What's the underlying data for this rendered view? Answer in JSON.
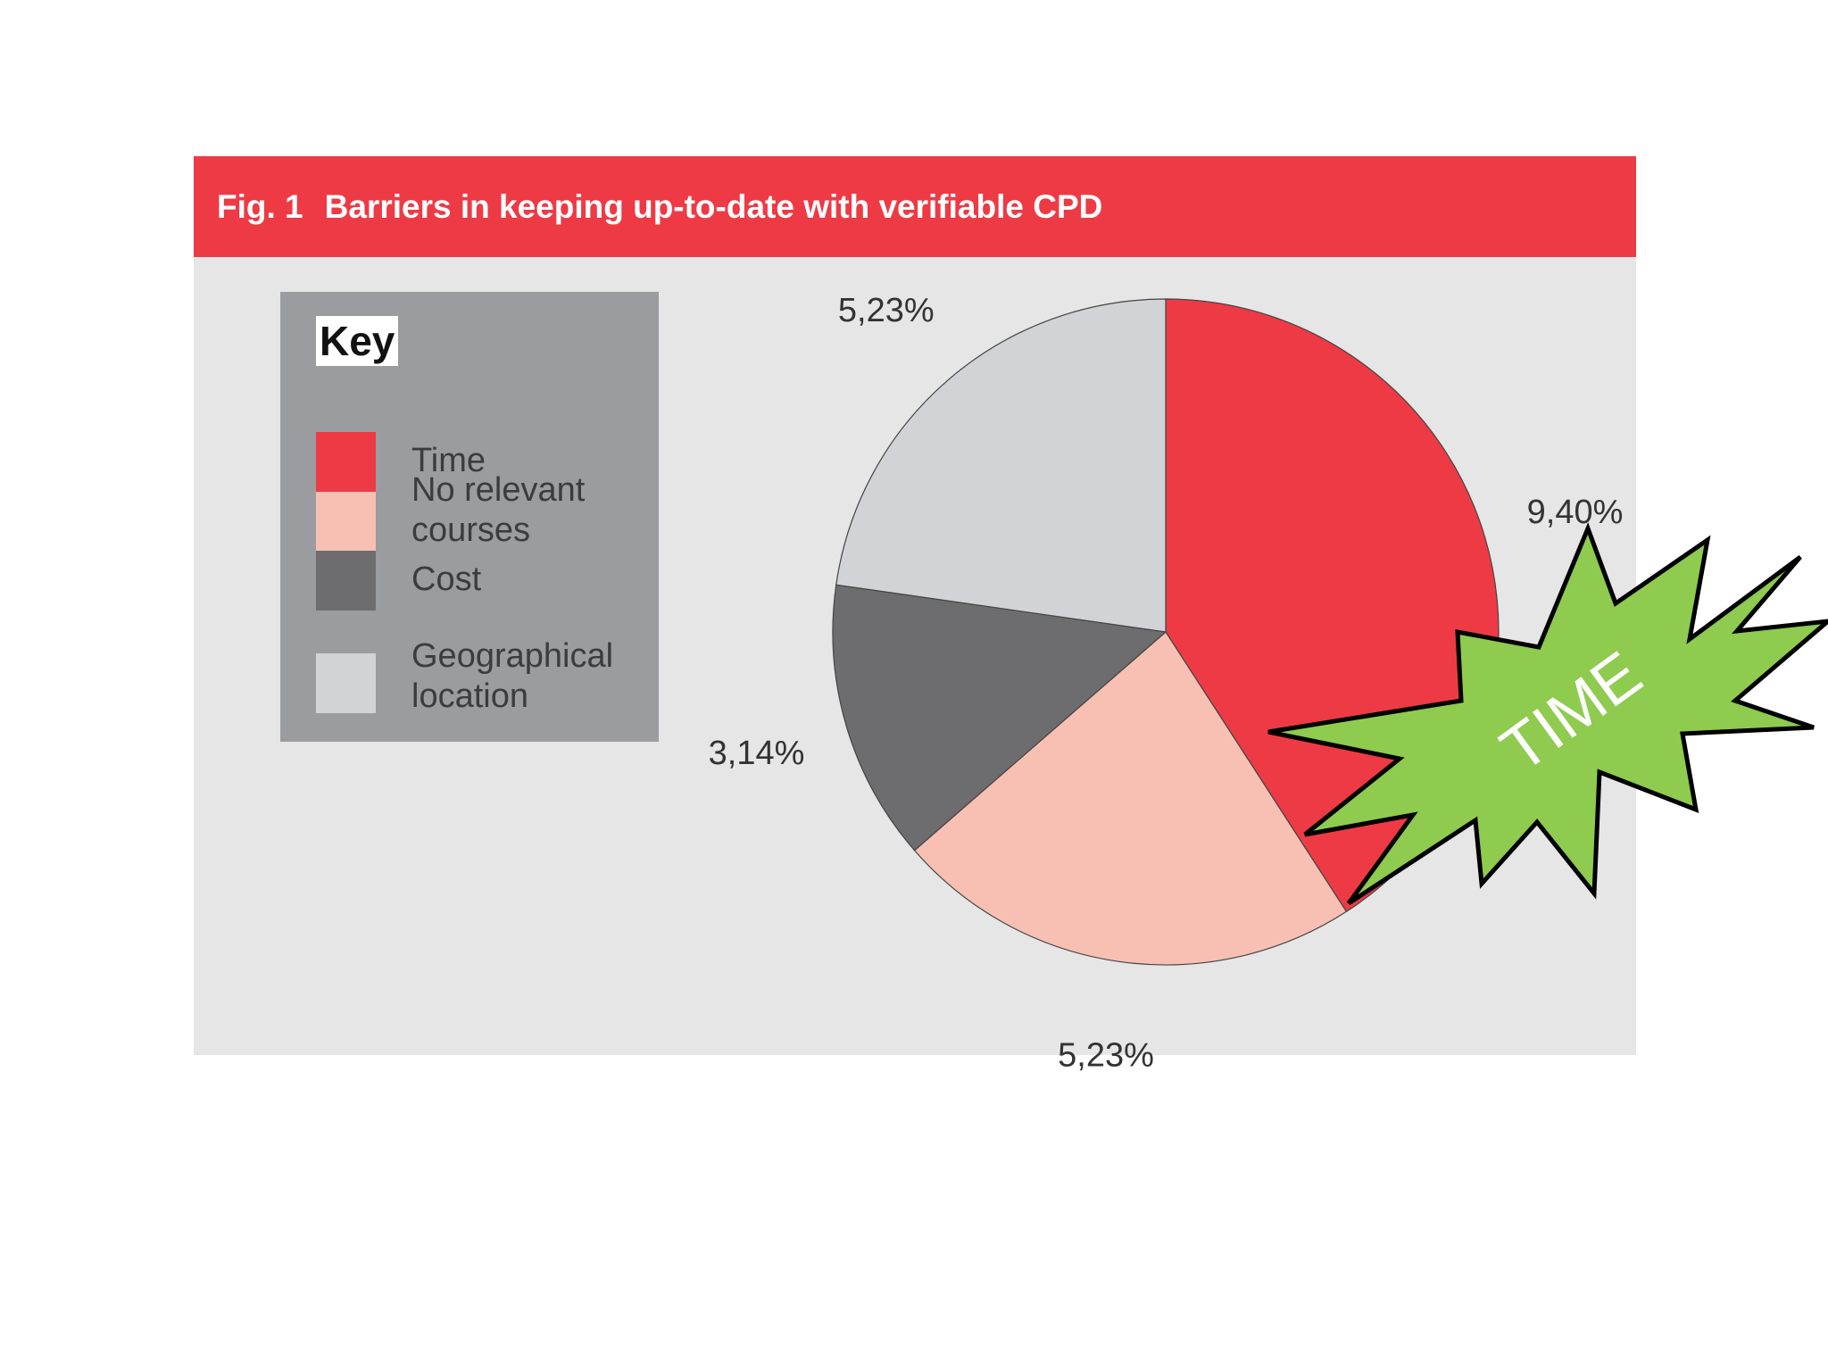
{
  "figure": {
    "fig_label": "Fig. 1",
    "title": "Barriers in keeping up-to-date with verifiable CPD"
  },
  "legend": {
    "title": "Key",
    "items": [
      {
        "label_lines": [
          "Time"
        ],
        "color": "#ee3a45"
      },
      {
        "label_lines": [
          "No relevant",
          "courses"
        ],
        "color": "#f8c0b3"
      },
      {
        "label_lines": [
          "Cost"
        ],
        "color": "#6d6d70"
      },
      {
        "label_lines": [
          "Geographical",
          "location"
        ],
        "color": "#d2d3d6"
      }
    ]
  },
  "chart_data": {
    "type": "pie",
    "categories": [
      "Time",
      "No relevant courses",
      "Cost",
      "Geographical location"
    ],
    "values": [
      9.4,
      5.23,
      3.14,
      5.23
    ],
    "labels": [
      "9,40%",
      "5,23%",
      "3,14%",
      "5,23%"
    ],
    "colors": [
      "#ee3a45",
      "#f8c0b3",
      "#6d6d70",
      "#d2d3d6"
    ],
    "title": "Barriers in keeping up-to-date with verifiable CPD",
    "legend": "left"
  },
  "annotation": {
    "text": "TIME",
    "color": "#8ecb4f"
  }
}
